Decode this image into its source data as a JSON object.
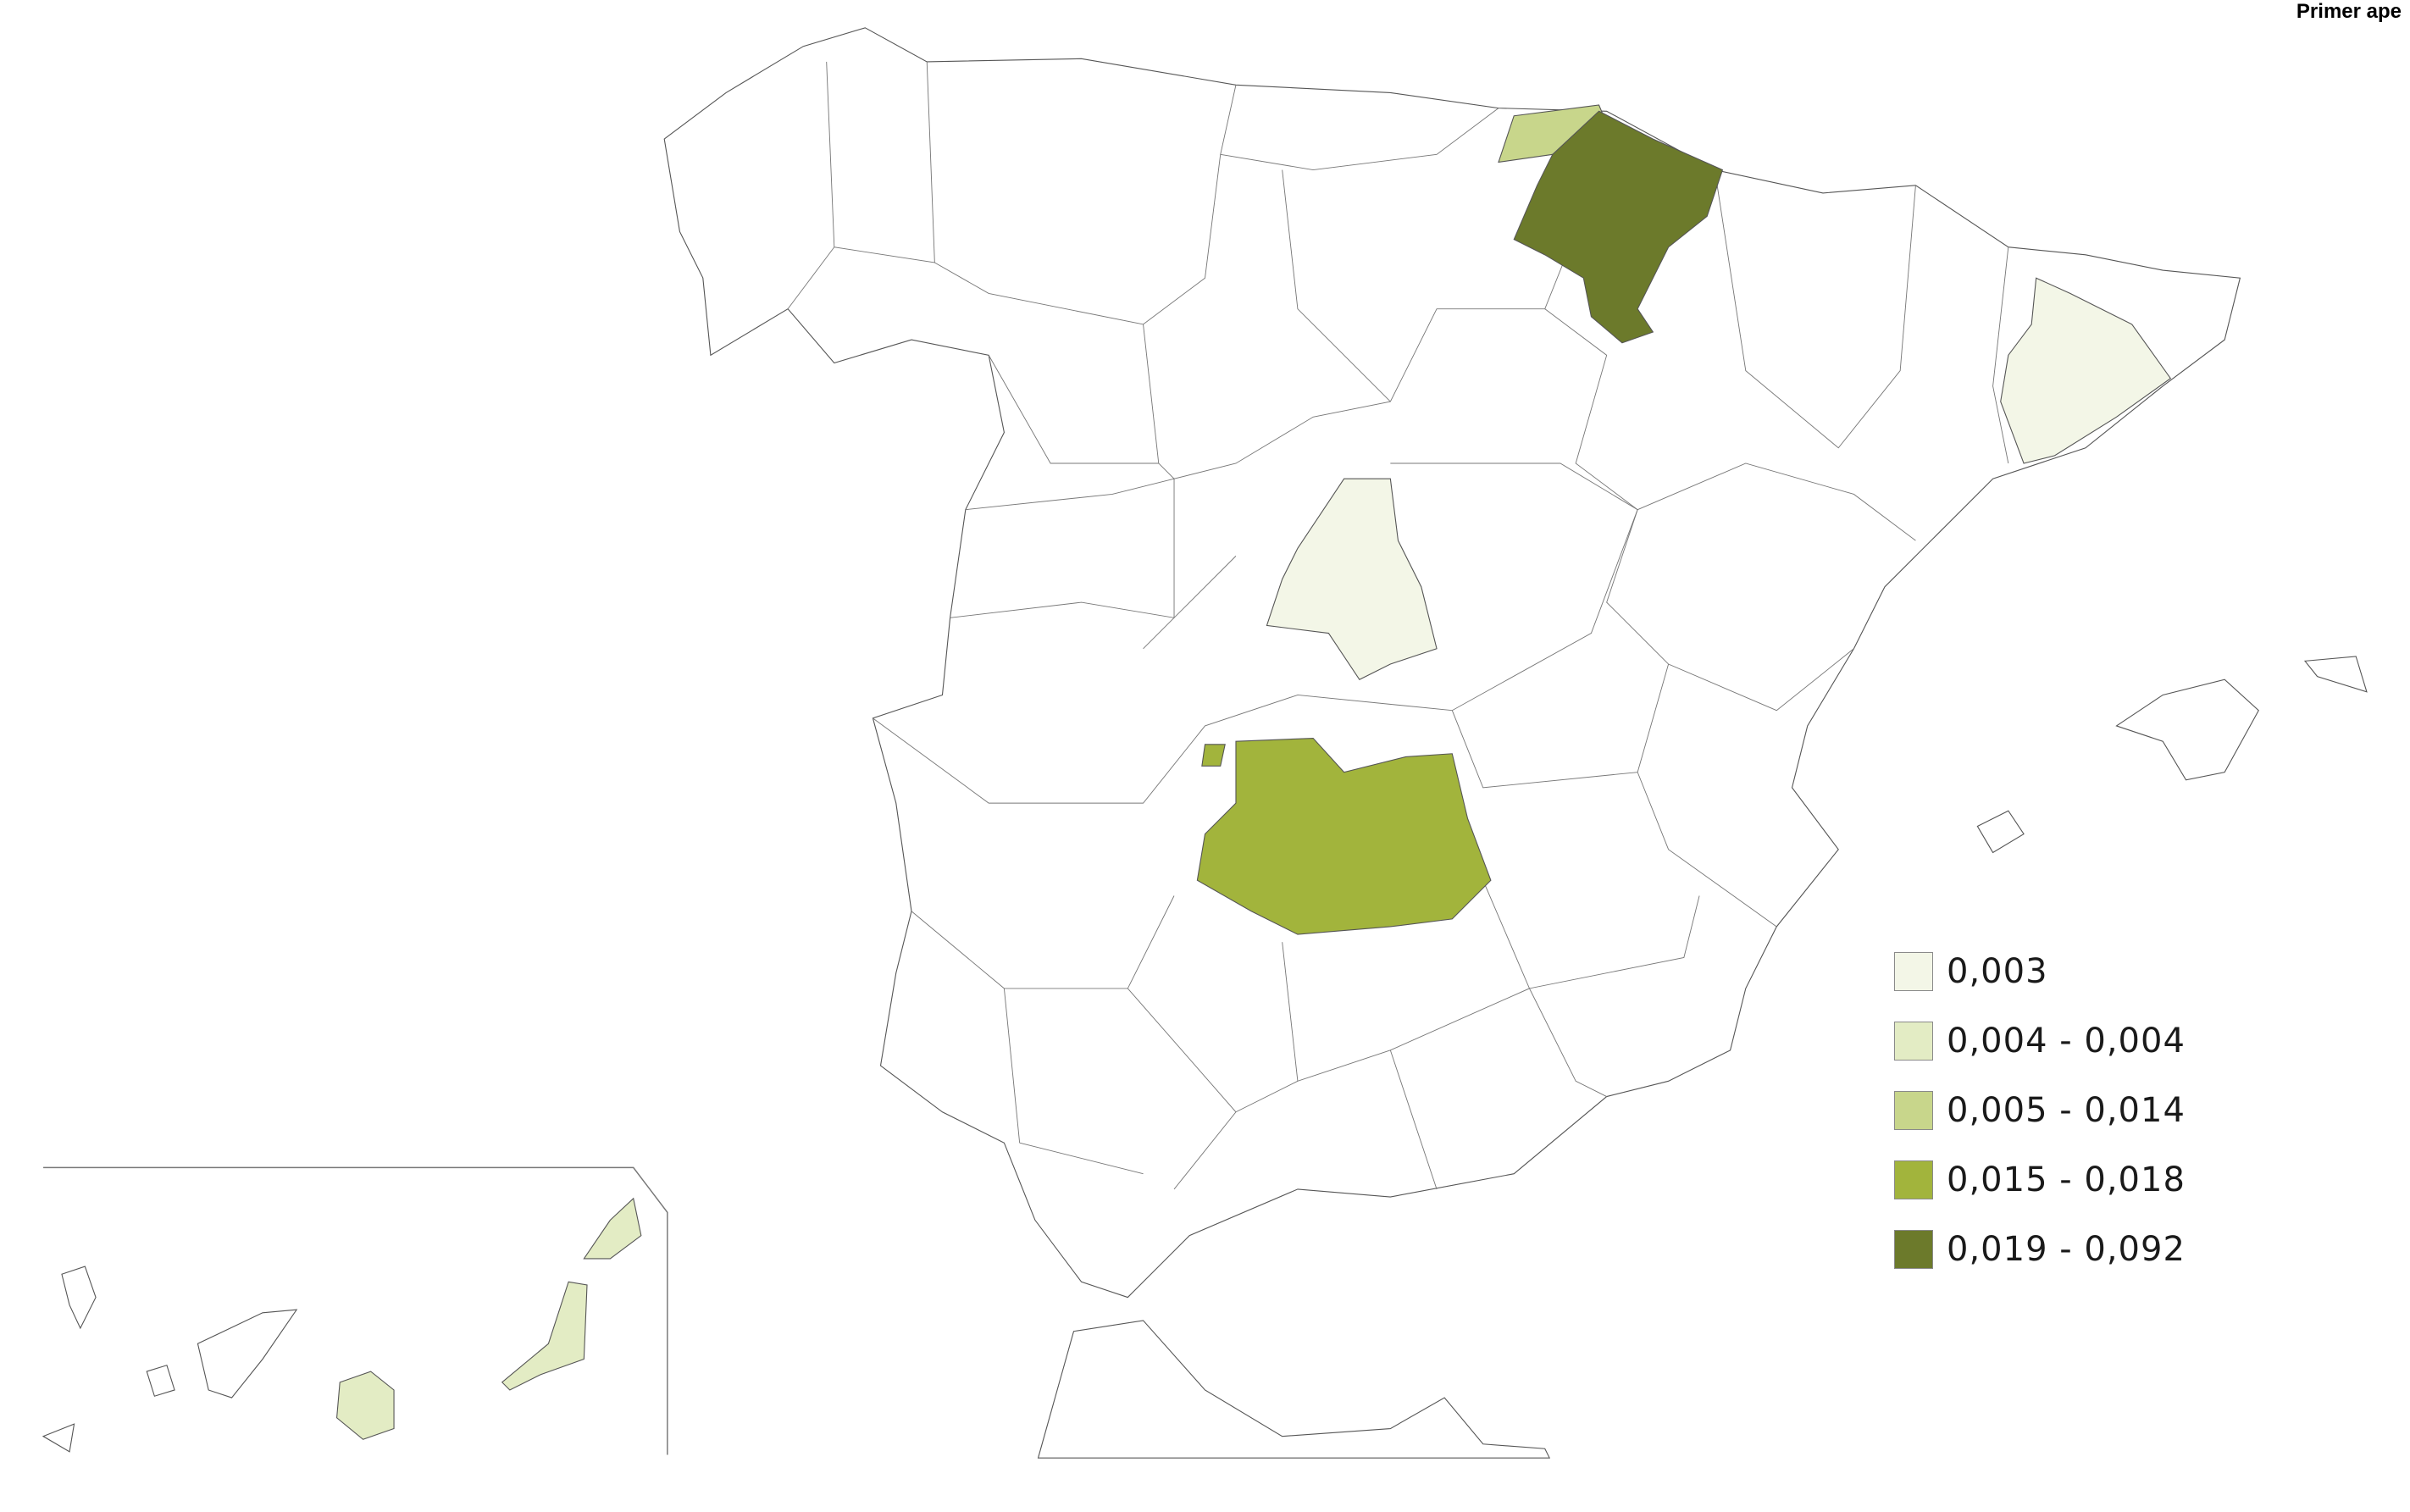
{
  "title": "Primer ape",
  "legend": [
    {
      "label": "0,003",
      "color": "#f3f6e7"
    },
    {
      "label": "0,004 - 0,004",
      "color": "#e3ecc4"
    },
    {
      "label": "0,005 - 0,014",
      "color": "#c8d68b"
    },
    {
      "label": "0,015 - 0,018",
      "color": "#a2b43c"
    },
    {
      "label": "0,019 - 0,092",
      "color": "#6c7a2b"
    }
  ],
  "regions": [
    {
      "name": "Gipuzkoa",
      "class": 2
    },
    {
      "name": "Navarra",
      "class": 4
    },
    {
      "name": "Madrid",
      "class": 0
    },
    {
      "name": "Barcelona",
      "class": 0
    },
    {
      "name": "Ciudad Real",
      "class": 3
    },
    {
      "name": "Las Palmas",
      "class": 1
    }
  ]
}
